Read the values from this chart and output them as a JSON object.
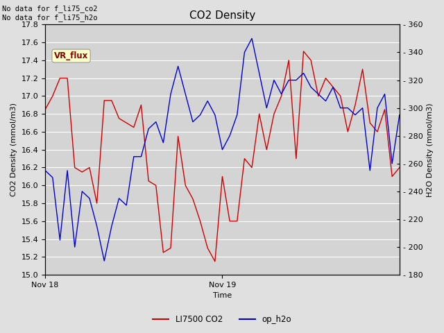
{
  "title": "CO2 Density",
  "xlabel": "Time",
  "ylabel_left": "CO2 Density (mmol/m3)",
  "ylabel_right": "H2O Density (mmol/m3)",
  "ylim_left": [
    15.0,
    17.8
  ],
  "ylim_right": [
    180,
    360
  ],
  "yticks_left": [
    15.0,
    15.2,
    15.4,
    15.6,
    15.8,
    16.0,
    16.2,
    16.4,
    16.6,
    16.8,
    17.0,
    17.2,
    17.4,
    17.6,
    17.8
  ],
  "yticks_right": [
    180,
    200,
    220,
    240,
    260,
    280,
    300,
    320,
    340,
    360
  ],
  "xtick_labels": [
    "Nov 18",
    "Nov 19"
  ],
  "annotation_text": "No data for f_li75_co2\nNo data for f_li75_h2o",
  "vr_flux_label": "VR_flux",
  "legend_entries": [
    "LI7500 CO2",
    "op_h2o"
  ],
  "line_color_red": "#cc0000",
  "line_color_blue": "#0000cc",
  "bg_color": "#e0e0e0",
  "plot_bg_color": "#d4d4d4",
  "grid_color": "#ffffff",
  "title_fontsize": 11,
  "label_fontsize": 8,
  "tick_fontsize": 8,
  "co2_x": [
    0,
    2,
    4,
    6,
    8,
    10,
    12,
    14,
    16,
    18,
    20,
    22,
    24,
    26,
    28,
    30,
    32,
    34,
    36,
    38,
    40,
    42,
    44,
    46,
    48,
    50,
    52,
    54,
    56,
    58,
    60,
    62,
    64,
    66,
    68,
    70,
    72,
    74,
    76,
    78,
    80,
    82,
    84,
    86,
    88,
    90,
    92,
    94,
    96
  ],
  "co2_y": [
    16.85,
    17.0,
    17.2,
    17.2,
    16.2,
    16.15,
    16.2,
    15.8,
    16.95,
    16.95,
    16.75,
    16.7,
    16.65,
    16.9,
    16.05,
    16.0,
    15.25,
    15.3,
    16.55,
    16.0,
    15.85,
    15.6,
    15.3,
    15.15,
    16.1,
    15.6,
    15.6,
    16.3,
    16.2,
    16.8,
    16.4,
    16.8,
    17.0,
    17.4,
    16.3,
    17.5,
    17.4,
    17.0,
    17.2,
    17.1,
    17.0,
    16.6,
    16.9,
    17.3,
    16.7,
    16.6,
    16.85,
    16.1,
    16.2
  ],
  "h2o_x": [
    0,
    2,
    4,
    6,
    8,
    10,
    12,
    14,
    16,
    18,
    20,
    22,
    24,
    26,
    28,
    30,
    32,
    34,
    36,
    38,
    40,
    42,
    44,
    46,
    48,
    50,
    52,
    54,
    56,
    58,
    60,
    62,
    64,
    66,
    68,
    70,
    72,
    74,
    76,
    78,
    80,
    82,
    84,
    86,
    88,
    90,
    92,
    94,
    96
  ],
  "h2o_y": [
    255,
    250,
    205,
    255,
    200,
    240,
    235,
    215,
    190,
    215,
    235,
    230,
    265,
    265,
    285,
    290,
    275,
    310,
    330,
    310,
    290,
    295,
    305,
    295,
    270,
    280,
    295,
    340,
    350,
    325,
    300,
    320,
    310,
    320,
    320,
    325,
    315,
    310,
    305,
    315,
    300,
    300,
    295,
    300,
    255,
    300,
    310,
    260,
    295
  ]
}
